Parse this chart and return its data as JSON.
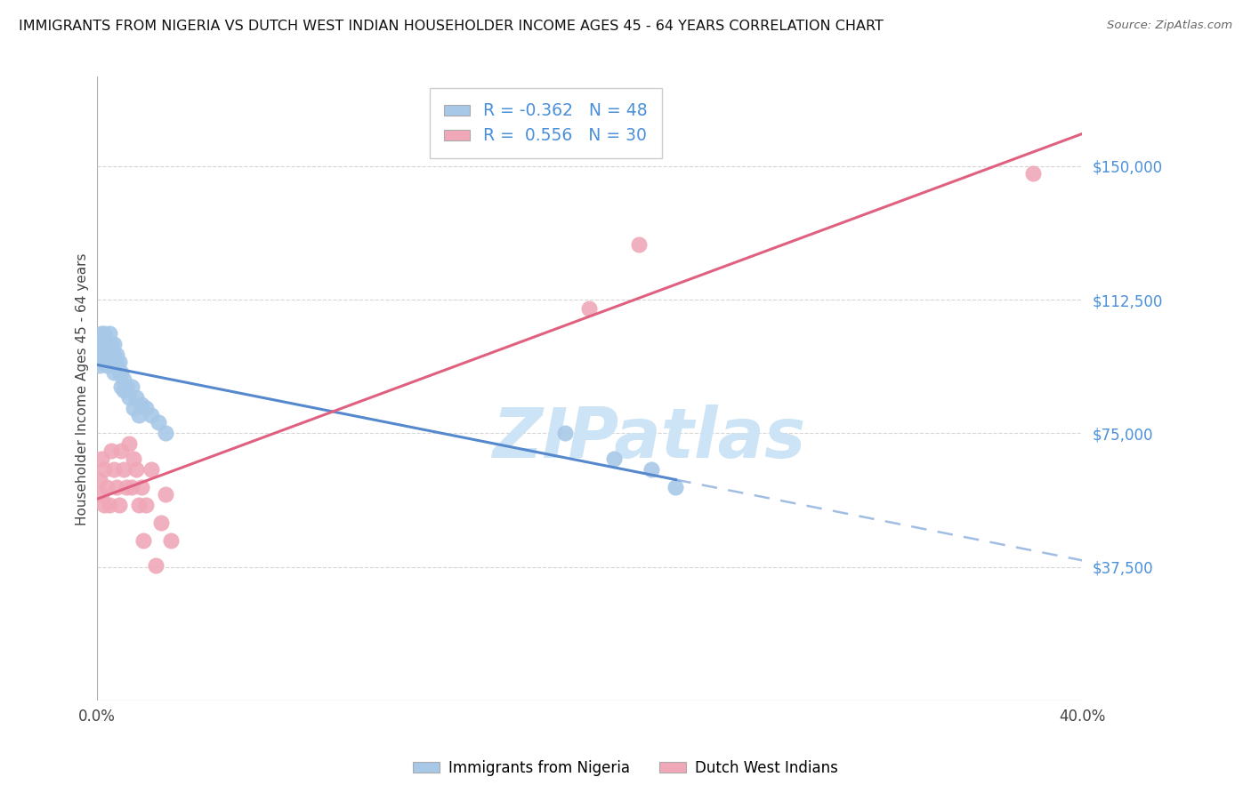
{
  "title": "IMMIGRANTS FROM NIGERIA VS DUTCH WEST INDIAN HOUSEHOLDER INCOME AGES 45 - 64 YEARS CORRELATION CHART",
  "source": "Source: ZipAtlas.com",
  "ylabel": "Householder Income Ages 45 - 64 years",
  "xlim": [
    0.0,
    0.4
  ],
  "ylim": [
    0,
    175000
  ],
  "ytick_positions": [
    37500,
    75000,
    112500,
    150000
  ],
  "ytick_labels": [
    "$37,500",
    "$75,000",
    "$112,500",
    "$150,000"
  ],
  "nigeria_R": -0.362,
  "nigeria_N": 48,
  "dutch_R": 0.556,
  "dutch_N": 30,
  "nigeria_color": "#a8c8e8",
  "dutch_color": "#f0a8b8",
  "nigeria_line_color": "#5588cc",
  "dutch_line_color": "#e06080",
  "nigeria_x": [
    0.001,
    0.001,
    0.001,
    0.002,
    0.002,
    0.002,
    0.002,
    0.003,
    0.003,
    0.003,
    0.003,
    0.004,
    0.004,
    0.004,
    0.005,
    0.005,
    0.005,
    0.005,
    0.006,
    0.006,
    0.006,
    0.007,
    0.007,
    0.007,
    0.007,
    0.008,
    0.008,
    0.009,
    0.009,
    0.01,
    0.01,
    0.011,
    0.011,
    0.012,
    0.013,
    0.014,
    0.015,
    0.016,
    0.017,
    0.018,
    0.02,
    0.022,
    0.025,
    0.028,
    0.19,
    0.21,
    0.225,
    0.235
  ],
  "nigeria_y": [
    100000,
    97000,
    94000,
    103000,
    100000,
    97000,
    95000,
    103000,
    100000,
    98000,
    95000,
    100000,
    97000,
    94000,
    103000,
    100000,
    97000,
    95000,
    100000,
    98000,
    95000,
    100000,
    97000,
    95000,
    92000,
    97000,
    94000,
    95000,
    92000,
    92000,
    88000,
    90000,
    87000,
    88000,
    85000,
    88000,
    82000,
    85000,
    80000,
    83000,
    82000,
    80000,
    78000,
    75000,
    75000,
    68000,
    65000,
    60000
  ],
  "dutch_x": [
    0.001,
    0.002,
    0.002,
    0.003,
    0.003,
    0.004,
    0.005,
    0.006,
    0.007,
    0.008,
    0.009,
    0.01,
    0.011,
    0.012,
    0.013,
    0.014,
    0.015,
    0.016,
    0.017,
    0.018,
    0.019,
    0.02,
    0.022,
    0.024,
    0.026,
    0.028,
    0.03,
    0.2,
    0.22,
    0.38
  ],
  "dutch_y": [
    62000,
    58000,
    68000,
    55000,
    65000,
    60000,
    55000,
    70000,
    65000,
    60000,
    55000,
    70000,
    65000,
    60000,
    72000,
    60000,
    68000,
    65000,
    55000,
    60000,
    45000,
    55000,
    65000,
    38000,
    50000,
    58000,
    45000,
    110000,
    128000,
    148000
  ],
  "watermark_text": "ZIPatlas",
  "watermark_color": "#cce4f5",
  "background_color": "#ffffff",
  "grid_color": "#cccccc",
  "legend_text_color": "#4a90d9",
  "right_label_color": "#4a90d9"
}
